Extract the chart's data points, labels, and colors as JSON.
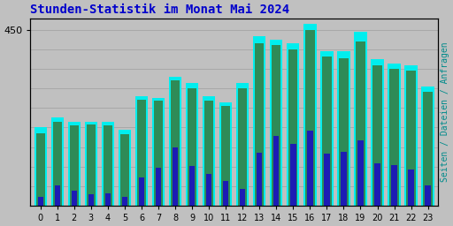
{
  "title": "Stunden-Statistik im Monat Mai 2024",
  "ylabel_right": "Seiten / Dateien / Anfragen",
  "categories": [
    0,
    1,
    2,
    3,
    4,
    5,
    6,
    7,
    8,
    9,
    10,
    11,
    12,
    13,
    14,
    15,
    16,
    17,
    18,
    19,
    20,
    21,
    22,
    23
  ],
  "seiten": [
    200,
    225,
    215,
    215,
    215,
    195,
    280,
    275,
    330,
    315,
    280,
    265,
    315,
    435,
    425,
    415,
    465,
    395,
    395,
    445,
    375,
    365,
    360,
    305
  ],
  "dateien": [
    185,
    215,
    205,
    207,
    205,
    182,
    272,
    268,
    322,
    300,
    268,
    255,
    300,
    415,
    412,
    400,
    450,
    382,
    378,
    420,
    360,
    350,
    345,
    292
  ],
  "anfragen": [
    22,
    52,
    38,
    28,
    32,
    22,
    72,
    98,
    148,
    102,
    82,
    62,
    42,
    135,
    178,
    158,
    193,
    133,
    138,
    168,
    108,
    103,
    93,
    52
  ],
  "color_seiten": "#00EEEE",
  "color_dateien": "#2E8B57",
  "color_anfragen": "#1C1CB4",
  "bg_color": "#C0C0C0",
  "plot_bg": "#C0C0C0",
  "title_color": "#0000CC",
  "ylabel_right_color": "#008B8B",
  "ylim": [
    0,
    480
  ],
  "ytick_val": 450,
  "grid_color": "#A8A8A8",
  "bar_width": 0.75
}
